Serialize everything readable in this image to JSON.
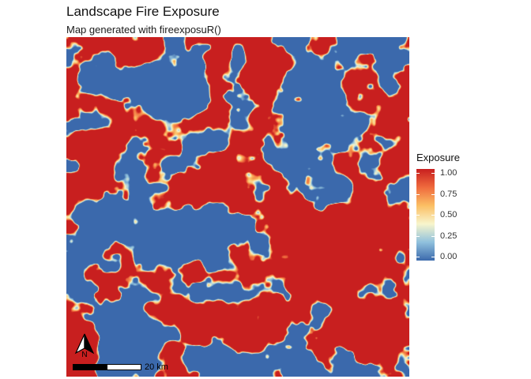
{
  "title": "Landscape Fire Exposure",
  "subtitle": "Map generated with fireexposuR()",
  "map": {
    "scale_bar_label": "20 km",
    "north_arrow_label": "N",
    "palette": [
      "#3b69ac",
      "#90c1dd",
      "#f8f5cc",
      "#fbbf64",
      "#ef6a3d",
      "#c81f1f"
    ]
  },
  "legend": {
    "title": "Exposure",
    "ticks": [
      "1.00",
      "0.75",
      "0.50",
      "0.25",
      "0.00"
    ],
    "colors": [
      "#c81f1f",
      "#ef6a3d",
      "#fbbf64",
      "#f8f5cc",
      "#90c1dd",
      "#3b69ac"
    ]
  }
}
